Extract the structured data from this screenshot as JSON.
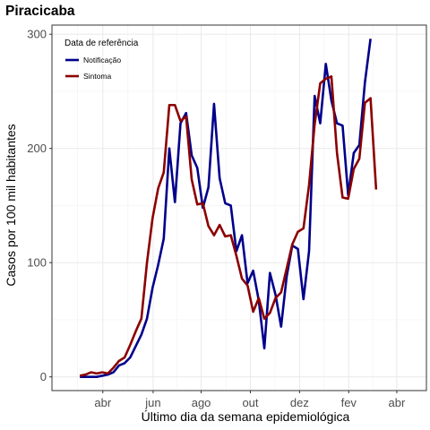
{
  "chart_data": {
    "type": "line",
    "title": "Piracicaba",
    "xlabel": "Último dia da semana epidemiológica",
    "ylabel": "Casos por 100 mil habitantes",
    "ylim": [
      -12,
      308
    ],
    "yticks": [
      0,
      100,
      200,
      300
    ],
    "xlim": [
      -5,
      62
    ],
    "xticks": [
      {
        "label": "abr",
        "x": 4.1
      },
      {
        "label": "jun",
        "x": 13.1
      },
      {
        "label": "ago",
        "x": 21.7
      },
      {
        "label": "out",
        "x": 30.5
      },
      {
        "label": "dez",
        "x": 39.3
      },
      {
        "label": "fev",
        "x": 48.1
      },
      {
        "label": "abr",
        "x": 56.7
      }
    ],
    "grid": true,
    "legend": {
      "title": "Data de referência",
      "position": "top-left"
    },
    "series": [
      {
        "name": "Notificação",
        "color": "#00008b",
        "values": [
          0,
          0,
          0,
          0,
          1,
          2,
          4,
          10,
          12,
          17,
          27,
          37,
          51,
          78,
          98,
          121,
          200,
          153,
          222,
          231,
          194,
          183,
          148,
          166,
          239,
          174,
          152,
          150,
          110,
          124,
          82,
          93,
          67,
          25,
          91,
          72,
          44,
          88,
          115,
          112,
          68,
          110,
          246,
          222,
          274,
          242,
          222,
          220,
          159,
          196,
          203,
          258,
          296
        ]
      },
      {
        "name": "Sintoma",
        "color": "#8b0000",
        "values": [
          1,
          2,
          4,
          3,
          4,
          3,
          8,
          14,
          17,
          28,
          40,
          51,
          100,
          139,
          165,
          179,
          238,
          238,
          224,
          228,
          173,
          151,
          152,
          132,
          124,
          133,
          123,
          124,
          106,
          86,
          80,
          57,
          69,
          51,
          56,
          69,
          74,
          95,
          116,
          127,
          130,
          168,
          221,
          257,
          261,
          263,
          196,
          157,
          156,
          182,
          191,
          240,
          244,
          164
        ]
      }
    ]
  }
}
